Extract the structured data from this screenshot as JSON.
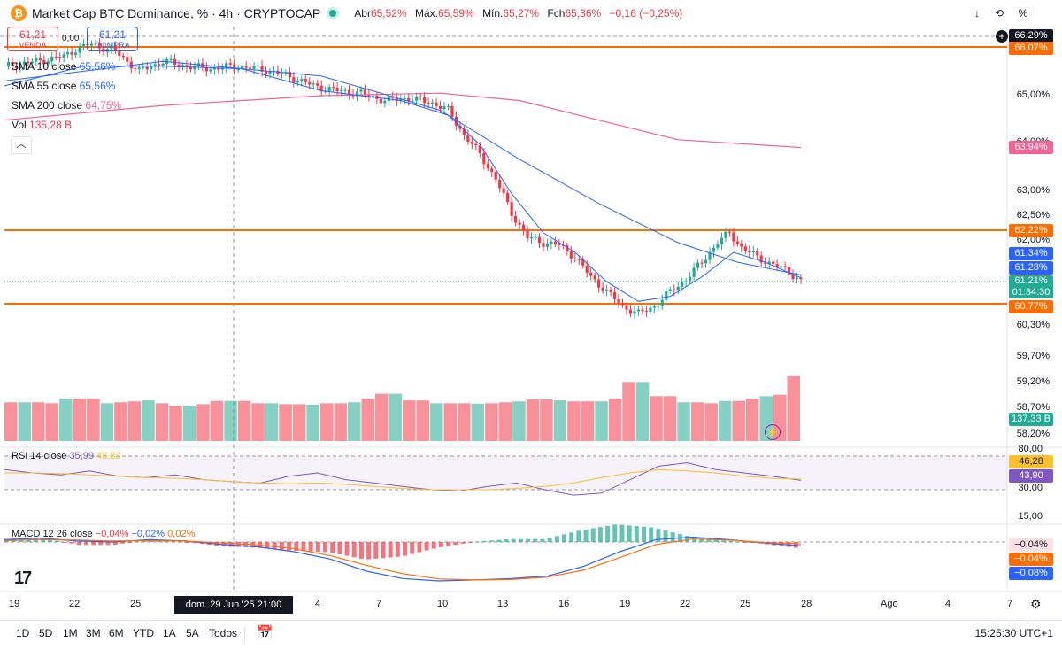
{
  "header": {
    "logo_letter": "₿",
    "title": "Market Cap BTC Dominance, % · 4h · CRYPTOCAP",
    "ohlc": {
      "open_label": "Abr",
      "open": "65,52%",
      "high_label": "Máx.",
      "high": "65,59%",
      "low_label": "Mín.",
      "low": "65,27%",
      "close_label": "Fch",
      "close": "65,36%",
      "change": "−0,16 (−0,25%)"
    },
    "right_buttons": [
      "↓",
      "⟲",
      "%"
    ]
  },
  "trade": {
    "sell_value": "61,21",
    "sell_label": "VENDA",
    "spread": "0,00",
    "buy_value": "61,21",
    "buy_label": "COMPRA"
  },
  "legend": {
    "sma10": "SMA 10 close",
    "sma10_val": "65,56%",
    "sma55": "SMA 55 close",
    "sma55_val": "65,56%",
    "sma200": "SMA 200 close",
    "sma200_val": "64,75%",
    "vol": "Vol",
    "vol_val": "135,28 B"
  },
  "rsi_legend": {
    "label": "RSI 14 close",
    "v1": "35,99",
    "v2": "48,83"
  },
  "macd_legend": {
    "label": "MACD 12 26 close",
    "v1": "−0,04%",
    "v2": "−0,02%",
    "v3": "0,02%"
  },
  "price_axis": [
    "65,00%",
    "64,00%",
    "63,00%",
    "62,50%",
    "62,00%",
    "60,30%",
    "59,70%",
    "59,20%",
    "58,70%",
    "58,20%"
  ],
  "price_tags": {
    "top": "66,29%",
    "r1": "66,07%",
    "sma200": "63,94%",
    "r2": "62,22%",
    "sma55": "61,34%",
    "sma10": "61,28%",
    "last": "61,21%",
    "countdown": "01:34:30",
    "r3": "60,77%",
    "volume": "137,33 B"
  },
  "rsi_axis": [
    "80,00",
    "30,00",
    "15,00"
  ],
  "rsi_tags": {
    "ma": "46,28",
    "rsi": "43,90"
  },
  "macd_tags": {
    "hist": "−0,04%",
    "signal": "−0,04%",
    "macd": "−0,08%"
  },
  "time_axis": [
    "19",
    "22",
    "25",
    "4",
    "7",
    "10",
    "13",
    "16",
    "19",
    "22",
    "25",
    "28",
    "Ago",
    "4",
    "7"
  ],
  "crosshair_time": "dom. 29 Jun '25   21:00",
  "timeframes": [
    "1D",
    "5D",
    "1M",
    "3M",
    "6M",
    "YTD",
    "1A",
    "5A",
    "Todos"
  ],
  "clock": "15:25:30 UTC+1",
  "colors": {
    "up": "#22ab94",
    "down": "#f23645",
    "orange": "#ff6d00",
    "sma10": "#2962ff",
    "sma55": "#2962ff",
    "sma200": "#f06292",
    "rsi": "#7e57c2",
    "rsi_ma": "#fbc02d"
  },
  "chart_data": {
    "type": "candlestick",
    "title": "Market Cap BTC Dominance, % · 4h · CRYPTOCAP",
    "y_unit": "%",
    "horizontal_levels": [
      66.07,
      62.22,
      60.77
    ],
    "close_path": [
      [
        0,
        65.6
      ],
      [
        8,
        65.7
      ],
      [
        15,
        65.8
      ],
      [
        18,
        65.95
      ],
      [
        22,
        66.05
      ],
      [
        28,
        65.9
      ],
      [
        34,
        65.5
      ],
      [
        40,
        65.7
      ],
      [
        46,
        65.6
      ],
      [
        52,
        65.55
      ],
      [
        58,
        65.6
      ],
      [
        64,
        65.55
      ],
      [
        70,
        65.45
      ],
      [
        78,
        65.2
      ],
      [
        84,
        65.1
      ],
      [
        90,
        65.05
      ],
      [
        96,
        64.9
      ],
      [
        102,
        64.95
      ],
      [
        108,
        64.85
      ],
      [
        112,
        64.7
      ],
      [
        116,
        64.2
      ],
      [
        120,
        63.8
      ],
      [
        124,
        63.3
      ],
      [
        128,
        62.6
      ],
      [
        132,
        62.1
      ],
      [
        136,
        62.0
      ],
      [
        140,
        61.95
      ],
      [
        144,
        61.7
      ],
      [
        148,
        61.3
      ],
      [
        152,
        61.0
      ],
      [
        156,
        60.7
      ],
      [
        160,
        60.55
      ],
      [
        164,
        60.7
      ],
      [
        168,
        61.0
      ],
      [
        172,
        61.25
      ],
      [
        176,
        61.6
      ],
      [
        180,
        62.0
      ],
      [
        183,
        62.2
      ],
      [
        186,
        61.9
      ],
      [
        190,
        61.7
      ],
      [
        194,
        61.55
      ],
      [
        198,
        61.4
      ],
      [
        201,
        61.21
      ]
    ],
    "sma10": [
      [
        0,
        65.2
      ],
      [
        20,
        65.6
      ],
      [
        40,
        65.6
      ],
      [
        60,
        65.55
      ],
      [
        80,
        65.1
      ],
      [
        100,
        64.9
      ],
      [
        112,
        64.6
      ],
      [
        120,
        64.0
      ],
      [
        128,
        63.0
      ],
      [
        136,
        62.2
      ],
      [
        144,
        61.8
      ],
      [
        152,
        61.2
      ],
      [
        160,
        60.8
      ],
      [
        168,
        60.9
      ],
      [
        176,
        61.3
      ],
      [
        184,
        61.8
      ],
      [
        192,
        61.6
      ],
      [
        201,
        61.28
      ]
    ],
    "sma55": [
      [
        0,
        65.3
      ],
      [
        40,
        65.7
      ],
      [
        80,
        65.4
      ],
      [
        110,
        64.7
      ],
      [
        130,
        63.7
      ],
      [
        150,
        62.8
      ],
      [
        170,
        62.0
      ],
      [
        185,
        61.6
      ],
      [
        201,
        61.34
      ]
    ],
    "sma200": [
      [
        0,
        64.5
      ],
      [
        40,
        64.8
      ],
      [
        80,
        65.0
      ],
      [
        110,
        65.05
      ],
      [
        130,
        64.9
      ],
      [
        150,
        64.5
      ],
      [
        170,
        64.1
      ],
      [
        201,
        63.94
      ]
    ],
    "volume_B": [
      82,
      82,
      82,
      80,
      90,
      90,
      90,
      80,
      82,
      84,
      86,
      80,
      75,
      75,
      78,
      85,
      85,
      85,
      80,
      80,
      78,
      78,
      77,
      80,
      80,
      82,
      90,
      100,
      100,
      86,
      86,
      80,
      80,
      80,
      79,
      80,
      82,
      84,
      88,
      88,
      86,
      84,
      84,
      84,
      90,
      125,
      125,
      95,
      95,
      82,
      82,
      80,
      85,
      85,
      90,
      95,
      98,
      137
    ],
    "rsi": [
      60,
      55,
      52,
      58,
      50,
      48,
      52,
      45,
      42,
      40,
      50,
      55,
      45,
      40,
      35,
      30,
      28,
      35,
      40,
      30,
      22,
      25,
      45,
      65,
      70,
      60,
      55,
      50,
      44
    ],
    "rsi_ma": [
      55,
      55,
      54,
      52,
      50,
      48,
      47,
      45,
      42,
      40,
      39,
      40,
      38,
      35,
      32,
      30,
      30,
      30,
      32,
      35,
      40,
      48,
      55,
      60,
      58,
      55,
      50,
      47,
      46
    ],
    "rsi_levels": [
      80,
      30,
      15
    ],
    "macd": [
      0.05,
      0.08,
      0.02,
      0.0,
      0.05,
      0.02,
      -0.05,
      -0.1,
      -0.2,
      -0.35,
      -0.6,
      -0.75,
      -0.8,
      -0.78,
      -0.75,
      -0.7,
      -0.5,
      -0.2,
      0.05,
      0.1,
      0.05,
      -0.02,
      -0.08
    ],
    "macd_signal": [
      0.03,
      0.05,
      0.04,
      0.02,
      0.03,
      0.02,
      -0.02,
      -0.06,
      -0.14,
      -0.28,
      -0.48,
      -0.65,
      -0.76,
      -0.78,
      -0.77,
      -0.72,
      -0.58,
      -0.32,
      -0.05,
      0.06,
      0.04,
      -0.01,
      -0.04
    ]
  }
}
